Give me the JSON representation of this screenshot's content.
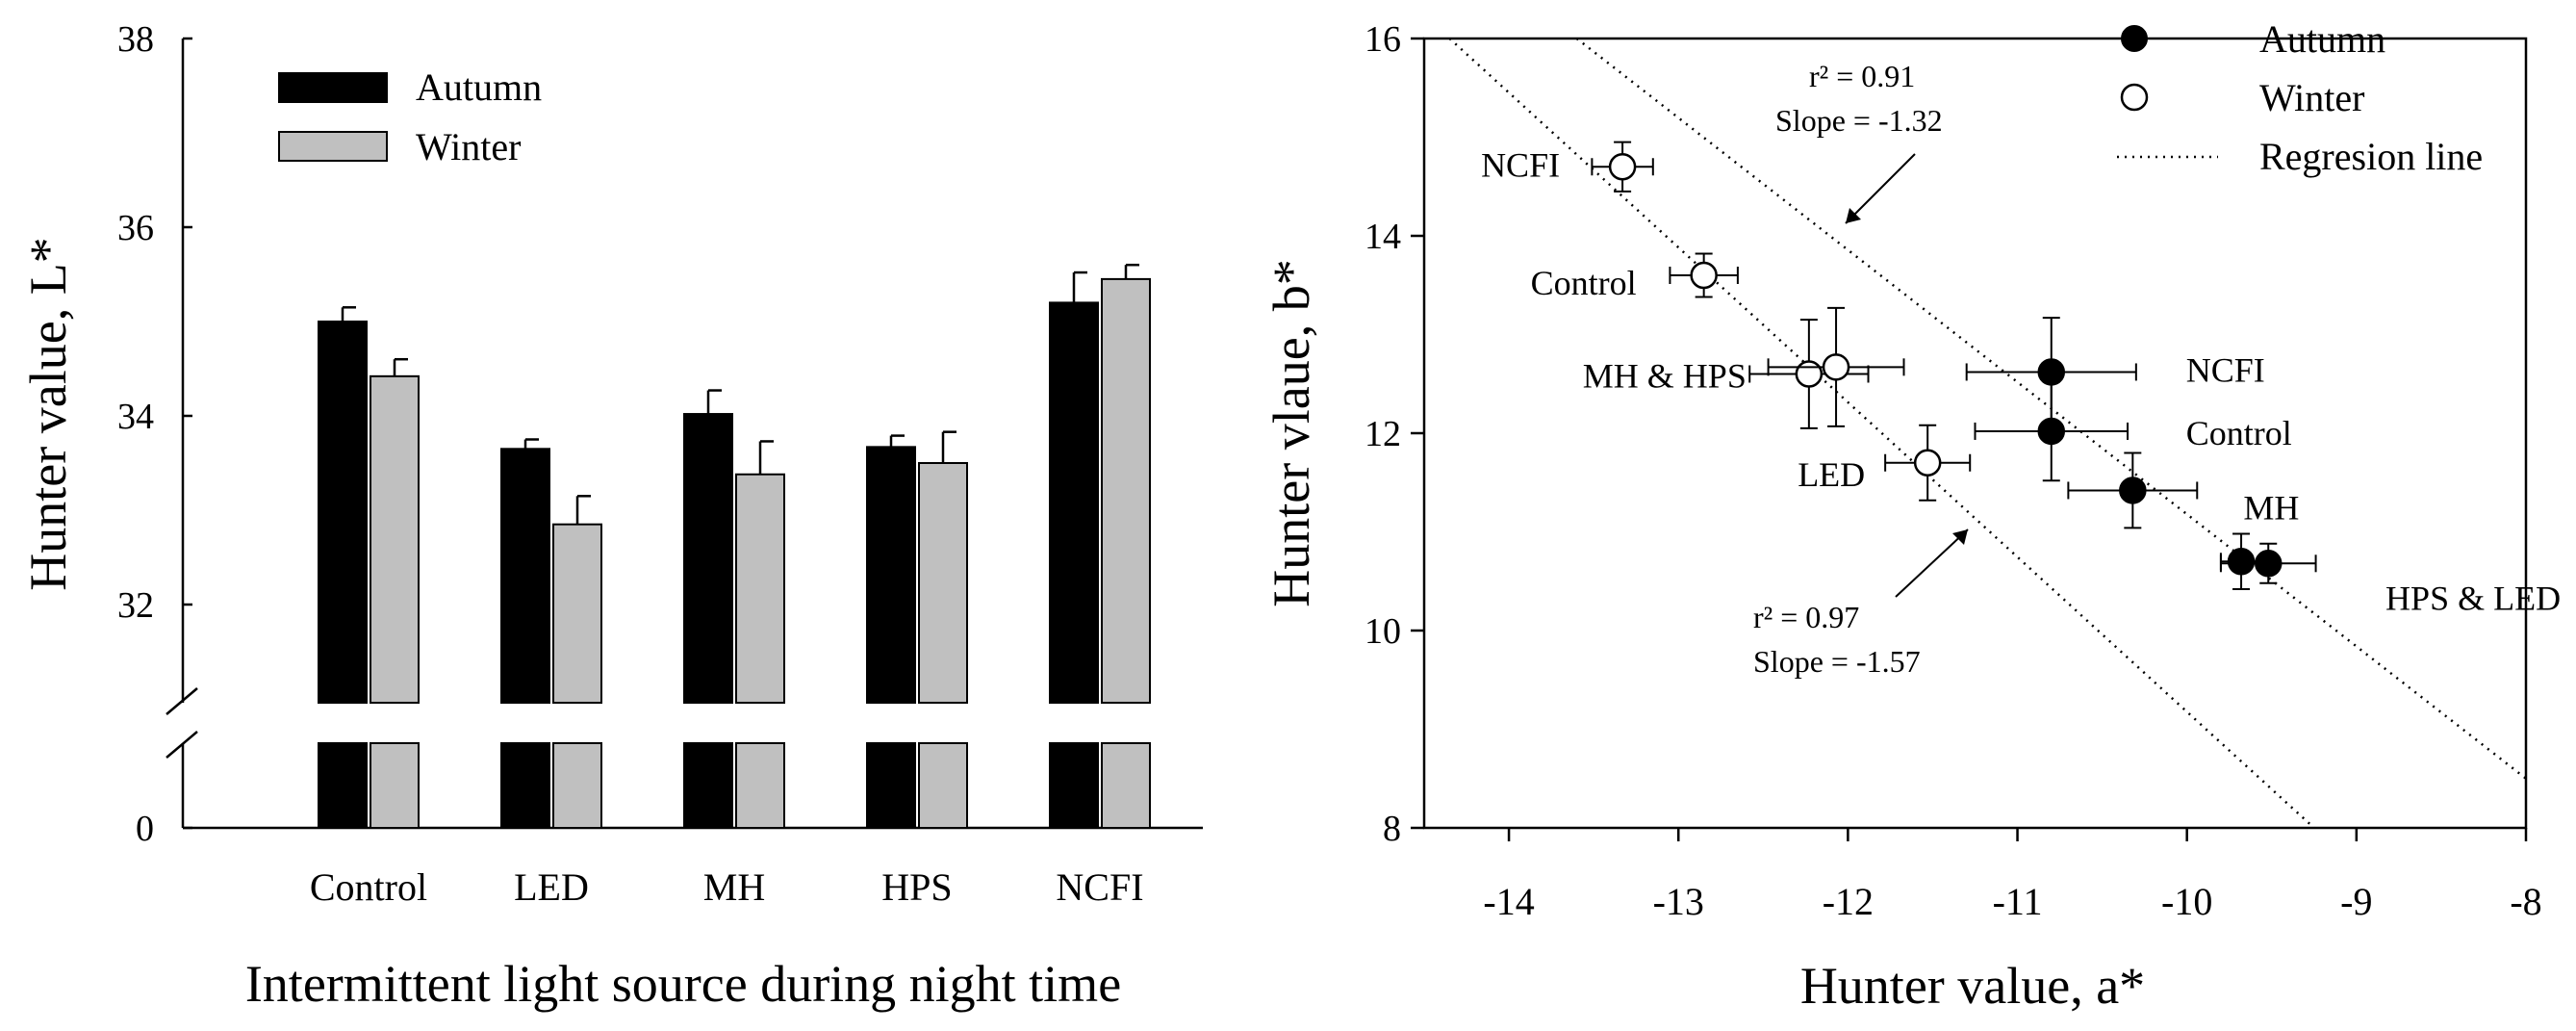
{
  "chart_data": [
    {
      "type": "bar",
      "xlabel": "Intermittent light source during night time",
      "ylabel": "Hunter value, L*",
      "ylim": [
        31,
        38
      ],
      "y_break": true,
      "yticks": [
        "0",
        "32",
        "34",
        "36",
        "38"
      ],
      "categories": [
        "Control",
        "LED",
        "MH",
        "HPS",
        "NCFI"
      ],
      "legend_position": "top-left",
      "series": [
        {
          "name": "Autumn",
          "color": "#000000",
          "values": [
            35.0,
            33.65,
            34.02,
            33.67,
            35.2
          ],
          "errors": [
            0.15,
            0.1,
            0.25,
            0.12,
            0.32
          ]
        },
        {
          "name": "Winter",
          "color": "#c0c0c0",
          "values": [
            34.42,
            32.85,
            33.38,
            33.5,
            35.45
          ],
          "errors": [
            0.18,
            0.3,
            0.35,
            0.33,
            0.15
          ]
        }
      ]
    },
    {
      "type": "scatter",
      "xlabel": "Hunter value, a*",
      "ylabel": "Hunter vlaue, b*",
      "xlim": [
        -14.5,
        -8
      ],
      "ylim": [
        8,
        16
      ],
      "xticks": [
        -14,
        -13,
        -12,
        -11,
        -10,
        -9,
        -8
      ],
      "yticks": [
        8,
        10,
        12,
        14,
        16
      ],
      "legend_position": "top-right",
      "legend": [
        "Autumn",
        "Winter",
        "Regresion line"
      ],
      "series": [
        {
          "name": "Autumn",
          "marker": "filled-circle",
          "points": [
            {
              "label": "NCFI",
              "x": -10.8,
              "y": 12.62,
              "xerr": 0.5,
              "yerr": 0.55
            },
            {
              "label": "Control",
              "x": -10.8,
              "y": 12.02,
              "xerr": 0.45,
              "yerr": 0.5
            },
            {
              "label": "MH",
              "x": -10.32,
              "y": 11.42,
              "xerr": 0.38,
              "yerr": 0.38
            },
            {
              "label": "HPS & LED",
              "x": -9.68,
              "y": 10.7,
              "xerr": 0.12,
              "yerr": 0.28
            },
            {
              "label": "",
              "x": -9.52,
              "y": 10.68,
              "xerr": 0.28,
              "yerr": 0.2
            }
          ]
        },
        {
          "name": "Winter",
          "marker": "open-circle",
          "points": [
            {
              "label": "NCFI",
              "x": -13.33,
              "y": 14.7,
              "xerr": 0.18,
              "yerr": 0.25
            },
            {
              "label": "Control",
              "x": -12.85,
              "y": 13.6,
              "xerr": 0.2,
              "yerr": 0.22
            },
            {
              "label": "MH & HPS",
              "x": -12.23,
              "y": 12.6,
              "xerr": 0.35,
              "yerr": 0.55
            },
            {
              "label": "",
              "x": -12.07,
              "y": 12.67,
              "xerr": 0.4,
              "yerr": 0.6
            },
            {
              "label": "LED",
              "x": -11.53,
              "y": 11.7,
              "xerr": 0.25,
              "yerr": 0.38
            }
          ]
        }
      ],
      "regression_lines": [
        {
          "r2_label": "r² = 0.91",
          "slope_label": "Slope = -1.32",
          "from": [
            -13.6,
            16.0
          ],
          "to": [
            -8.0,
            8.5
          ]
        },
        {
          "r2_label": "r² = 0.97",
          "slope_label": "Slope = -1.57",
          "from": [
            -14.35,
            16.0
          ],
          "to": [
            -9.25,
            8.0
          ]
        }
      ]
    }
  ]
}
